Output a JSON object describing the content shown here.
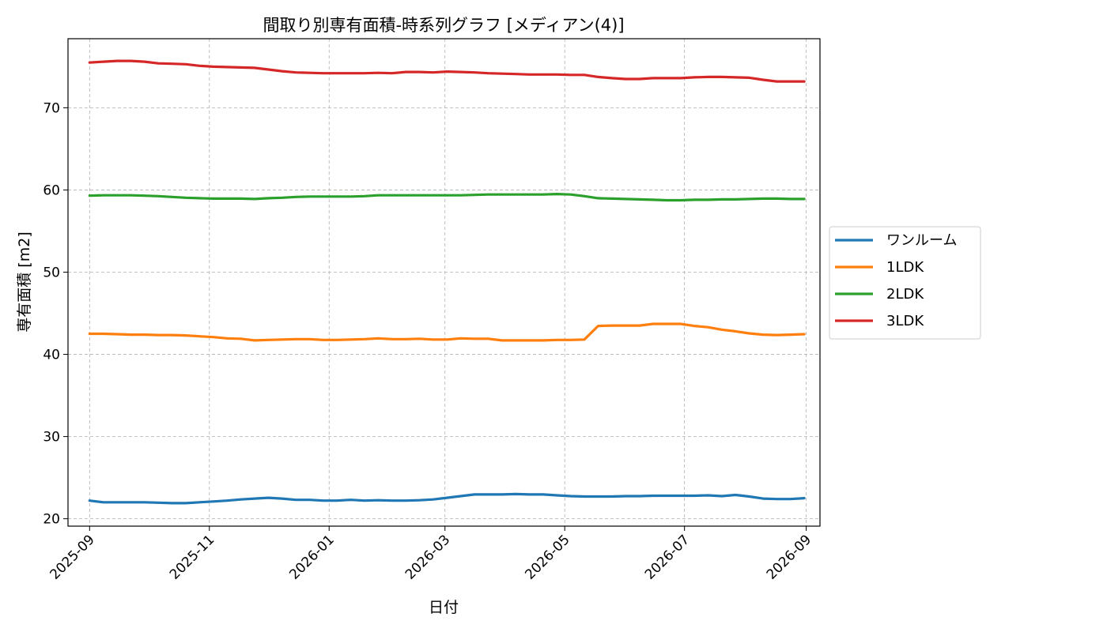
{
  "chart_data": {
    "type": "line",
    "title": "間取り別専有面積-時系列グラフ [メディアン(4)]",
    "xlabel": "日付",
    "ylabel": "専有面積 [m2]",
    "x_tick_labels": [
      "2025-09",
      "2025-11",
      "2026-01",
      "2026-03",
      "2026-05",
      "2026-07",
      "2026-09"
    ],
    "y_ticks": [
      20,
      30,
      40,
      50,
      60,
      70
    ],
    "xlim": [
      "2025-08-21",
      "2026-09-08"
    ],
    "ylim": [
      19.1,
      78.4
    ],
    "grid": true,
    "legend_position": "right-outside",
    "x": [
      "2025-09-01",
      "2025-09-08",
      "2025-09-15",
      "2025-09-22",
      "2025-09-29",
      "2025-10-06",
      "2025-10-13",
      "2025-10-20",
      "2025-10-27",
      "2025-11-03",
      "2025-11-10",
      "2025-11-17",
      "2025-11-24",
      "2025-12-01",
      "2025-12-08",
      "2025-12-15",
      "2025-12-22",
      "2025-12-29",
      "2026-01-05",
      "2026-01-12",
      "2026-01-19",
      "2026-01-26",
      "2026-02-02",
      "2026-02-09",
      "2026-02-16",
      "2026-02-23",
      "2026-03-02",
      "2026-03-09",
      "2026-03-16",
      "2026-03-23",
      "2026-03-30",
      "2026-04-06",
      "2026-04-13",
      "2026-04-20",
      "2026-04-27",
      "2026-05-04",
      "2026-05-11",
      "2026-05-18",
      "2026-05-25",
      "2026-06-01",
      "2026-06-08",
      "2026-06-15",
      "2026-06-22",
      "2026-06-29",
      "2026-07-06",
      "2026-07-13",
      "2026-07-20",
      "2026-07-27",
      "2026-08-03",
      "2026-08-10",
      "2026-08-17",
      "2026-08-24",
      "2026-08-31"
    ],
    "series": [
      {
        "name": "ワンルーム",
        "color": "#1f77b4",
        "values": [
          22.2,
          22.0,
          22.0,
          22.0,
          22.0,
          21.95,
          21.9,
          21.9,
          22.0,
          22.1,
          22.2,
          22.35,
          22.45,
          22.55,
          22.45,
          22.3,
          22.3,
          22.2,
          22.2,
          22.3,
          22.2,
          22.25,
          22.2,
          22.2,
          22.25,
          22.35,
          22.55,
          22.75,
          22.95,
          22.95,
          22.95,
          23.0,
          22.95,
          22.95,
          22.85,
          22.75,
          22.7,
          22.7,
          22.7,
          22.75,
          22.75,
          22.8,
          22.8,
          22.8,
          22.8,
          22.85,
          22.75,
          22.9,
          22.7,
          22.45,
          22.4,
          22.4,
          22.5
        ]
      },
      {
        "name": "1LDK",
        "color": "#ff7f0e",
        "values": [
          42.5,
          42.5,
          42.45,
          42.4,
          42.4,
          42.35,
          42.35,
          42.3,
          42.2,
          42.1,
          41.95,
          41.9,
          41.7,
          41.75,
          41.8,
          41.85,
          41.85,
          41.75,
          41.75,
          41.8,
          41.85,
          41.95,
          41.85,
          41.85,
          41.9,
          41.8,
          41.8,
          41.95,
          41.9,
          41.9,
          41.7,
          41.7,
          41.7,
          41.7,
          41.75,
          41.75,
          41.8,
          43.45,
          43.5,
          43.5,
          43.5,
          43.7,
          43.7,
          43.7,
          43.45,
          43.3,
          43.0,
          42.8,
          42.55,
          42.4,
          42.35,
          42.4,
          42.45
        ]
      },
      {
        "name": "2LDK",
        "color": "#2ca02c",
        "values": [
          59.3,
          59.35,
          59.35,
          59.35,
          59.3,
          59.25,
          59.15,
          59.05,
          59.0,
          58.95,
          58.95,
          58.95,
          58.9,
          59.0,
          59.05,
          59.15,
          59.2,
          59.2,
          59.2,
          59.2,
          59.25,
          59.35,
          59.35,
          59.35,
          59.35,
          59.35,
          59.35,
          59.35,
          59.4,
          59.45,
          59.45,
          59.45,
          59.45,
          59.45,
          59.5,
          59.45,
          59.25,
          59.0,
          58.95,
          58.9,
          58.85,
          58.8,
          58.75,
          58.75,
          58.8,
          58.8,
          58.85,
          58.85,
          58.9,
          58.95,
          58.95,
          58.9,
          58.9
        ]
      },
      {
        "name": "3LDK",
        "color": "#d62728",
        "values": [
          75.5,
          75.6,
          75.7,
          75.7,
          75.6,
          75.4,
          75.35,
          75.3,
          75.1,
          75.0,
          74.95,
          74.9,
          74.85,
          74.65,
          74.45,
          74.3,
          74.25,
          74.2,
          74.2,
          74.2,
          74.2,
          74.25,
          74.2,
          74.35,
          74.35,
          74.3,
          74.4,
          74.35,
          74.3,
          74.2,
          74.15,
          74.1,
          74.05,
          74.05,
          74.05,
          74.0,
          74.0,
          73.75,
          73.6,
          73.5,
          73.5,
          73.6,
          73.6,
          73.6,
          73.7,
          73.75,
          73.75,
          73.7,
          73.65,
          73.4,
          73.2,
          73.2,
          73.2
        ]
      }
    ]
  }
}
